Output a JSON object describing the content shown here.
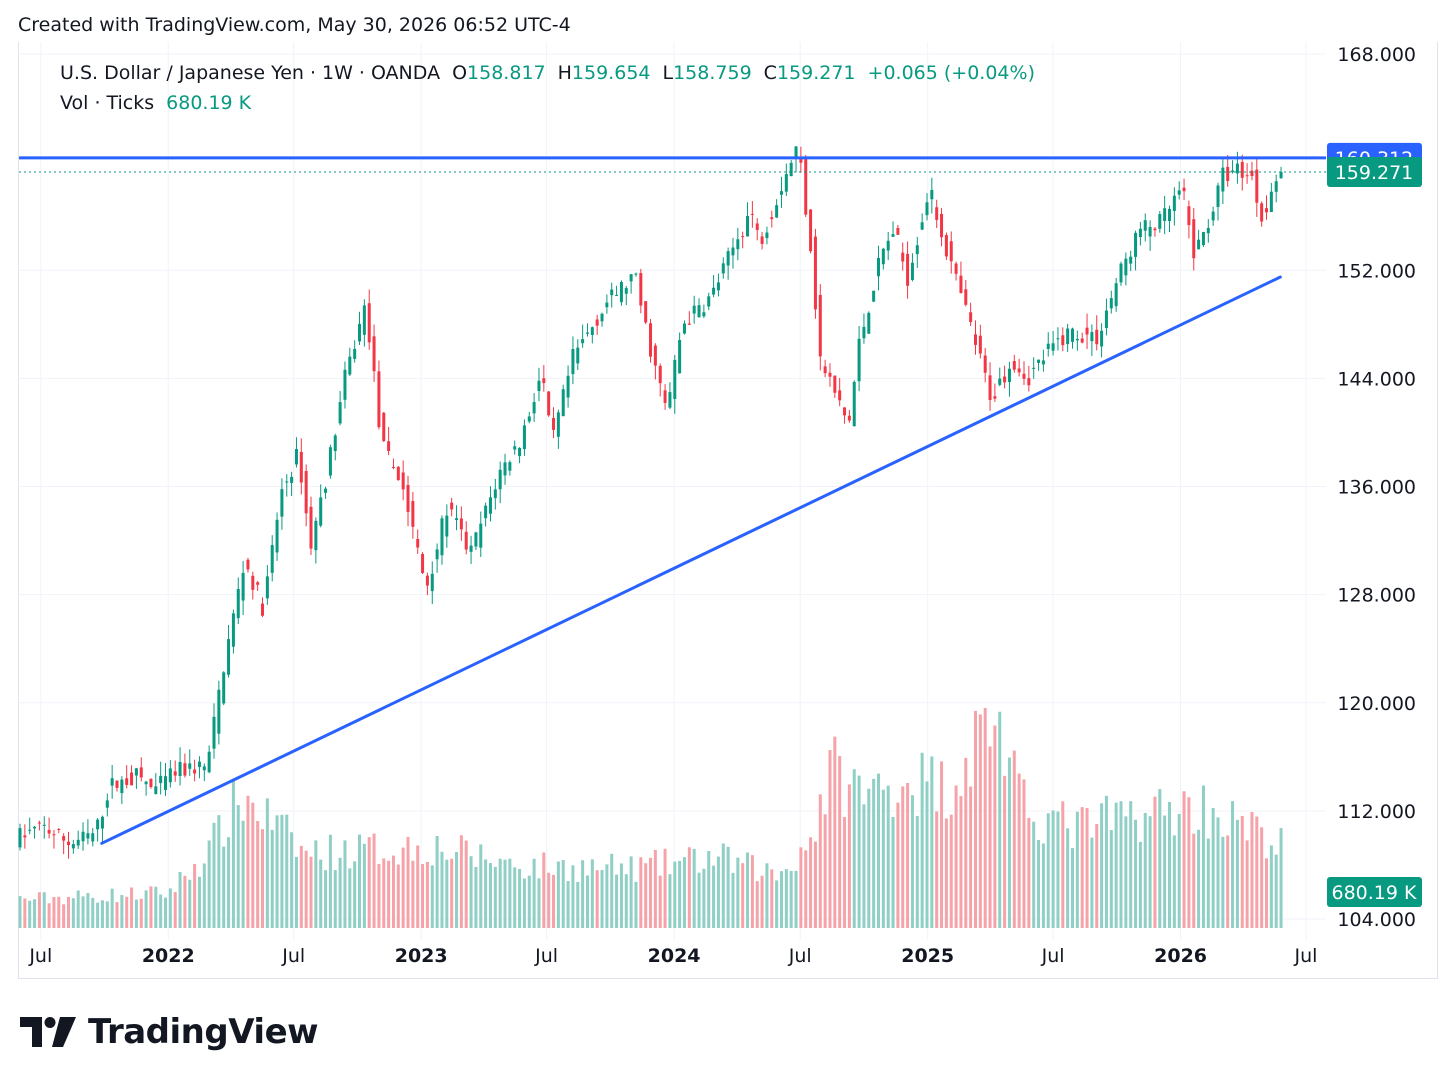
{
  "header": {
    "note": "Created with TradingView.com, May 30, 2026 06:52 UTC-4"
  },
  "legend": {
    "symbol": "U.S. Dollar / Japanese Yen",
    "interval": "1W",
    "source": "OANDA",
    "open_key": "O",
    "open": "158.817",
    "high_key": "H",
    "high": "159.654",
    "low_key": "L",
    "low": "158.759",
    "close_key": "C",
    "close": "159.271",
    "change": "+0.065 (+0.04%)",
    "vol_label": "Vol",
    "vol_source": "Ticks",
    "vol_value": "680.19 K"
  },
  "colors": {
    "up": "#089981",
    "down": "#f23645",
    "vol_up": "#8fcfc6",
    "vol_down": "#f5a3a8",
    "trendline": "#2962ff",
    "grid": "#f0f3fa",
    "text": "#131722"
  },
  "chart_data": {
    "type": "candlestick",
    "symbol": "USD/JPY",
    "price_axis": {
      "range": [
        104,
        168
      ],
      "ticks": [
        "168.000",
        "152.000",
        "144.000",
        "136.000",
        "128.000",
        "120.000",
        "112.000",
        "104.000"
      ]
    },
    "time_axis": {
      "ticks": [
        {
          "label": "Jul",
          "date": "2021-07-01",
          "bold": false
        },
        {
          "label": "2022",
          "date": "2022-01-01",
          "bold": true
        },
        {
          "label": "Jul",
          "date": "2022-07-01",
          "bold": false
        },
        {
          "label": "2023",
          "date": "2023-01-01",
          "bold": true
        },
        {
          "label": "Jul",
          "date": "2023-07-01",
          "bold": false
        },
        {
          "label": "2024",
          "date": "2024-01-01",
          "bold": true
        },
        {
          "label": "Jul",
          "date": "2024-07-01",
          "bold": false
        },
        {
          "label": "2025",
          "date": "2025-01-01",
          "bold": true
        },
        {
          "label": "Jul",
          "date": "2025-07-01",
          "bold": false
        },
        {
          "label": "2026",
          "date": "2026-01-01",
          "bold": true
        },
        {
          "label": "Jul",
          "date": "2026-07-01",
          "bold": false
        }
      ],
      "range": [
        "2021-06-01",
        "2026-07-01"
      ]
    },
    "price_path": [
      [
        "2021-06-01",
        110.0
      ],
      [
        "2021-07-12",
        110.8
      ],
      [
        "2021-08-20",
        109.6
      ],
      [
        "2021-09-25",
        110.3
      ],
      [
        "2021-10-15",
        113.8
      ],
      [
        "2021-11-25",
        114.6
      ],
      [
        "2021-12-20",
        113.5
      ],
      [
        "2022-01-15",
        114.8
      ],
      [
        "2022-02-20",
        115.3
      ],
      [
        "2022-03-05",
        115.2
      ],
      [
        "2022-03-28",
        122.5
      ],
      [
        "2022-04-28",
        130.5
      ],
      [
        "2022-05-25",
        127.0
      ],
      [
        "2022-06-20",
        135.5
      ],
      [
        "2022-07-15",
        138.5
      ],
      [
        "2022-08-01",
        131.5
      ],
      [
        "2022-08-25",
        137.0
      ],
      [
        "2022-09-20",
        144.0
      ],
      [
        "2022-10-20",
        149.5
      ],
      [
        "2022-11-12",
        139.0
      ],
      [
        "2022-12-10",
        136.5
      ],
      [
        "2023-01-15",
        128.5
      ],
      [
        "2023-02-15",
        134.5
      ],
      [
        "2023-03-20",
        131.0
      ],
      [
        "2023-05-01",
        137.0
      ],
      [
        "2023-06-01",
        139.5
      ],
      [
        "2023-07-01",
        144.5
      ],
      [
        "2023-07-15",
        139.0
      ],
      [
        "2023-08-15",
        145.5
      ],
      [
        "2023-10-01",
        149.5
      ],
      [
        "2023-11-12",
        151.6
      ],
      [
        "2023-12-01",
        147.0
      ],
      [
        "2023-12-28",
        141.5
      ],
      [
        "2024-01-20",
        148.0
      ],
      [
        "2024-03-01",
        150.0
      ],
      [
        "2024-04-28",
        156.5
      ],
      [
        "2024-05-10",
        154.0
      ],
      [
        "2024-06-20",
        159.5
      ],
      [
        "2024-07-05",
        161.3
      ],
      [
        "2024-07-25",
        153.0
      ],
      [
        "2024-08-05",
        145.5
      ],
      [
        "2024-09-16",
        140.5
      ],
      [
        "2024-10-01",
        146.5
      ],
      [
        "2024-11-01",
        153.0
      ],
      [
        "2024-11-20",
        155.0
      ],
      [
        "2024-12-10",
        151.5
      ],
      [
        "2025-01-10",
        158.0
      ],
      [
        "2025-02-10",
        152.5
      ],
      [
        "2025-03-10",
        148.0
      ],
      [
        "2025-04-10",
        142.5
      ],
      [
        "2025-05-10",
        145.5
      ],
      [
        "2025-06-01",
        144.0
      ],
      [
        "2025-07-01",
        146.0
      ],
      [
        "2025-08-01",
        147.5
      ],
      [
        "2025-09-10",
        147.0
      ],
      [
        "2025-10-10",
        151.5
      ],
      [
        "2025-11-10",
        155.0
      ],
      [
        "2025-12-10",
        155.5
      ],
      [
        "2026-01-10",
        158.0
      ],
      [
        "2026-01-28",
        153.0
      ],
      [
        "2026-02-20",
        156.0
      ],
      [
        "2026-03-10",
        159.0
      ],
      [
        "2026-04-01",
        159.5
      ],
      [
        "2026-04-20",
        159.0
      ],
      [
        "2026-05-05",
        156.0
      ],
      [
        "2026-05-29",
        159.271
      ]
    ],
    "ohlc_last": {
      "open": 158.817,
      "high": 159.654,
      "low": 158.759,
      "close": 159.271
    },
    "horizontal_line": {
      "value": 160.312,
      "label": "160.312"
    },
    "last_price": {
      "value": 159.271,
      "label": "159.271"
    },
    "trendline": {
      "start": [
        "2021-09-27",
        109.6
      ],
      "end": [
        "2026-05-25",
        151.5
      ]
    },
    "volume": {
      "last_label": "680.19 K",
      "profile": [
        [
          "2021-06-01",
          0.13
        ],
        [
          "2022-01-01",
          0.16
        ],
        [
          "2022-03-01",
          0.35
        ],
        [
          "2022-04-15",
          0.6
        ],
        [
          "2022-06-01",
          0.48
        ],
        [
          "2022-07-15",
          0.34
        ],
        [
          "2022-11-15",
          0.36
        ],
        [
          "2023-01-15",
          0.37
        ],
        [
          "2023-06-01",
          0.28
        ],
        [
          "2023-11-01",
          0.27
        ],
        [
          "2024-03-01",
          0.32
        ],
        [
          "2024-06-01",
          0.24
        ],
        [
          "2024-07-15",
          0.4
        ],
        [
          "2024-08-15",
          0.72
        ],
        [
          "2024-10-01",
          0.6
        ],
        [
          "2024-12-01",
          0.68
        ],
        [
          "2025-02-01",
          0.64
        ],
        [
          "2025-04-07",
          1.0
        ],
        [
          "2025-05-15",
          0.55
        ],
        [
          "2025-08-01",
          0.45
        ],
        [
          "2025-11-01",
          0.52
        ],
        [
          "2026-02-01",
          0.55
        ],
        [
          "2026-05-29",
          0.37
        ]
      ]
    }
  },
  "footer": {
    "wordmark": "TradingView"
  }
}
